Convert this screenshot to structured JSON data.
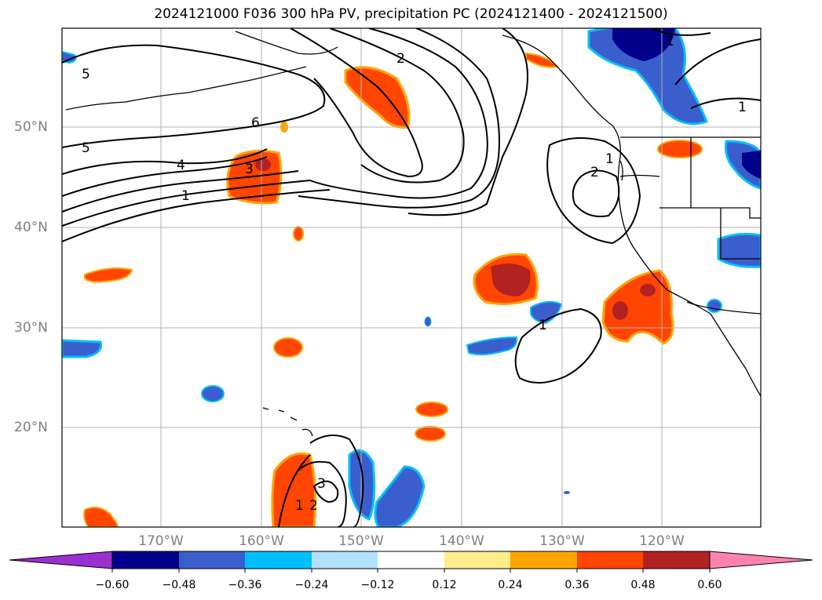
{
  "title": "2024121000 F036 300 hPa PV, precipitation PC (2024121400 - 2024121500)",
  "map": {
    "lat_labels": [
      "50°N",
      "40°N",
      "30°N",
      "20°N"
    ],
    "lon_labels": [
      "170°W",
      "160°W",
      "150°W",
      "140°W",
      "130°W",
      "120°W"
    ],
    "contour_labels": [
      "5",
      "6",
      "5",
      "4",
      "3",
      "1",
      "2",
      "1",
      "2",
      "1",
      "1",
      "1",
      "3",
      "2",
      "1"
    ]
  },
  "colorbar": {
    "tick_labels": [
      "−0.60",
      "−0.48",
      "−0.36",
      "−0.24",
      "−0.12",
      "0.12",
      "0.24",
      "0.36",
      "0.48",
      "0.60"
    ],
    "colors": [
      "#9b30d0",
      "#00008b",
      "#3a5fcd",
      "#00bfff",
      "#b0e2ff",
      "#ffffff",
      "#ffec8b",
      "#ffa500",
      "#ff4500",
      "#b22222",
      "#ff82ab"
    ]
  }
}
